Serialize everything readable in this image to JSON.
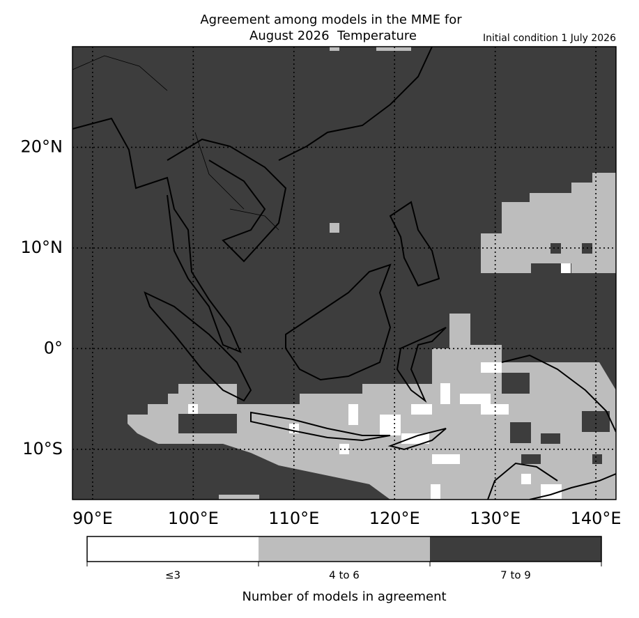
{
  "chart_data": {
    "type": "map",
    "title": "Agreement among models in the MME for",
    "subtitle": "August 2026  Temperature",
    "annotation": "Initial condition 1 July 2026",
    "xlim": [
      88,
      142
    ],
    "ylim": [
      -15,
      30
    ],
    "xticks": [
      {
        "value": 90,
        "label": "90°E"
      },
      {
        "value": 100,
        "label": "100°E"
      },
      {
        "value": 110,
        "label": "110°E"
      },
      {
        "value": 120,
        "label": "120°E"
      },
      {
        "value": 130,
        "label": "130°E"
      },
      {
        "value": 140,
        "label": "140°E"
      }
    ],
    "yticks": [
      {
        "value": 20,
        "label": "20°N"
      },
      {
        "value": 10,
        "label": "10°N"
      },
      {
        "value": 0,
        "label": "0°"
      },
      {
        "value": -10,
        "label": "10°S"
      }
    ],
    "grid": true,
    "colorbar": {
      "label": "Number of models in agreement",
      "categories": [
        "≤3",
        "4 to 6",
        "7 to 9"
      ],
      "colors": [
        "#ffffff",
        "#bdbdbd",
        "#3d3d3d"
      ]
    }
  }
}
